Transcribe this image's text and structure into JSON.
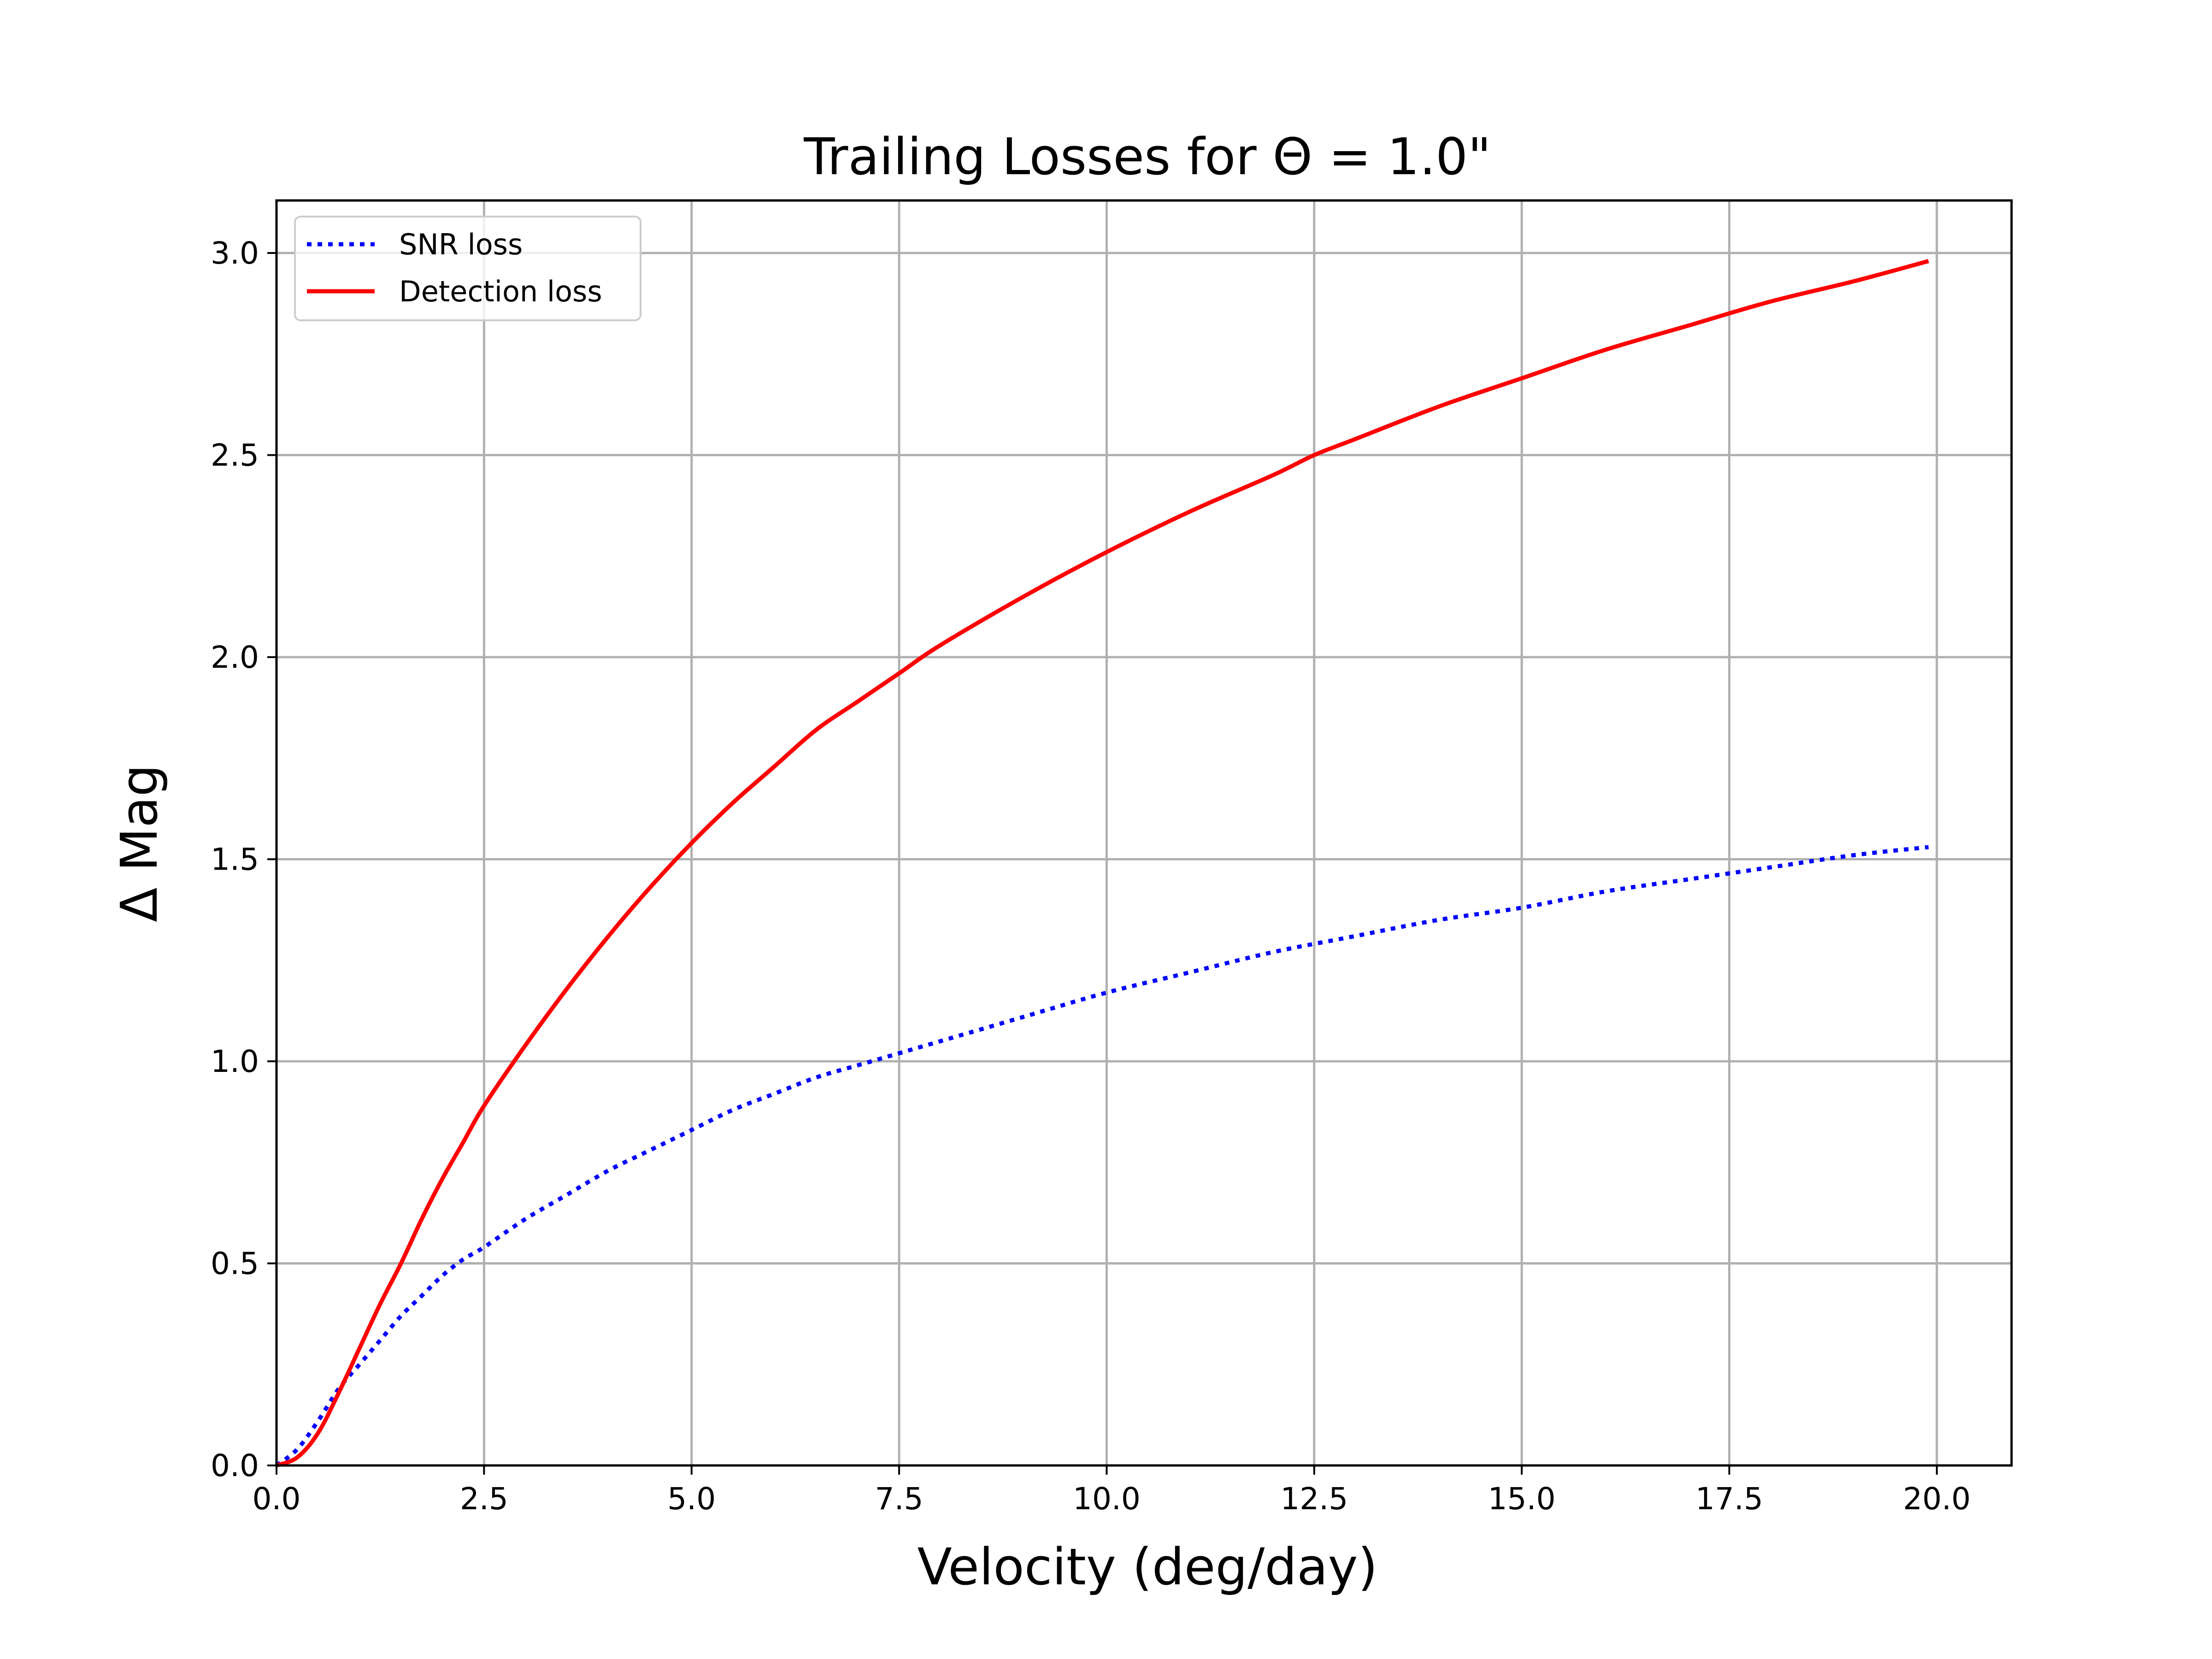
{
  "chart_data": {
    "type": "line",
    "title": "Trailing Losses for Θ = 1.0\"",
    "xlabel": "Velocity (deg/day)",
    "ylabel": "Δ Mag",
    "xlim": [
      0.0,
      20.9
    ],
    "ylim": [
      0.0,
      3.13
    ],
    "grid": true,
    "legend_position": "top-left",
    "x_ticks": [
      "0.0",
      "2.5",
      "5.0",
      "7.5",
      "10.0",
      "12.5",
      "15.0",
      "17.5",
      "20.0"
    ],
    "y_ticks": [
      "0.0",
      "0.5",
      "1.0",
      "1.5",
      "2.0",
      "2.5",
      "3.0"
    ],
    "series": [
      {
        "name": "SNR loss",
        "color": "#0000ff",
        "style": "dotted",
        "x": [
          0,
          0.25,
          0.5,
          0.75,
          1.0,
          1.25,
          1.5,
          1.75,
          2.0,
          2.25,
          2.5,
          3.0,
          3.5,
          4.0,
          4.5,
          5.0,
          5.5,
          6.0,
          6.5,
          7.0,
          7.5,
          8.0,
          9.0,
          10.0,
          11.0,
          12.0,
          13.0,
          14.0,
          15.0,
          16.0,
          17.0,
          18.0,
          19.0,
          19.9
        ],
        "y": [
          0.0,
          0.04,
          0.11,
          0.19,
          0.25,
          0.31,
          0.37,
          0.42,
          0.47,
          0.51,
          0.54,
          0.61,
          0.67,
          0.73,
          0.78,
          0.83,
          0.88,
          0.92,
          0.96,
          0.99,
          1.02,
          1.05,
          1.11,
          1.17,
          1.22,
          1.27,
          1.31,
          1.35,
          1.38,
          1.42,
          1.45,
          1.48,
          1.51,
          1.53
        ]
      },
      {
        "name": "Detection loss",
        "color": "#ff0000",
        "style": "solid",
        "x": [
          0,
          0.25,
          0.5,
          0.75,
          1.0,
          1.25,
          1.5,
          1.75,
          2.0,
          2.25,
          2.5,
          3.0,
          3.5,
          4.0,
          4.5,
          5.0,
          5.5,
          6.0,
          6.5,
          7.0,
          7.5,
          8.0,
          9.0,
          10.0,
          11.0,
          12.0,
          12.5,
          13.0,
          14.0,
          15.0,
          16.0,
          17.0,
          18.0,
          19.0,
          19.9
        ],
        "y": [
          0.0,
          0.02,
          0.08,
          0.18,
          0.29,
          0.4,
          0.5,
          0.61,
          0.71,
          0.8,
          0.89,
          1.04,
          1.18,
          1.31,
          1.43,
          1.54,
          1.64,
          1.73,
          1.82,
          1.89,
          1.96,
          2.03,
          2.15,
          2.26,
          2.36,
          2.45,
          2.5,
          2.54,
          2.62,
          2.69,
          2.76,
          2.82,
          2.88,
          2.93,
          2.98
        ]
      }
    ]
  }
}
